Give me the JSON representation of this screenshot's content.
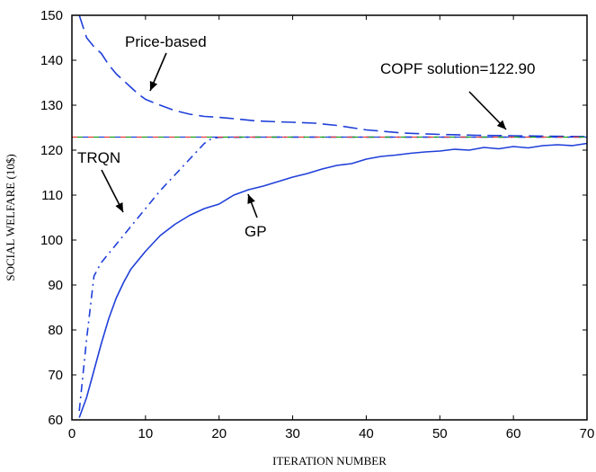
{
  "chart_data": {
    "type": "line",
    "xlabel": "ITERATION NUMBER",
    "ylabel": "SOCIAL WELFARE (10$)",
    "xlim": [
      0,
      70
    ],
    "ylim": [
      60,
      150
    ],
    "xticks": [
      0,
      10,
      20,
      30,
      40,
      50,
      60,
      70
    ],
    "yticks": [
      60,
      70,
      80,
      90,
      100,
      110,
      120,
      130,
      140,
      150
    ],
    "grid": false,
    "legend": "none",
    "annotations": [
      {
        "label": "Price-based",
        "target": "Price-based"
      },
      {
        "label": "COPF solution=122.90",
        "target": "COPF"
      },
      {
        "label": "TRQN",
        "target": "TRQN"
      },
      {
        "label": "GP",
        "target": "GP"
      }
    ],
    "series": [
      {
        "name": "Price-based",
        "style": "dashed",
        "color": "#1f3fd9",
        "x": [
          1,
          2,
          3,
          4,
          5,
          6,
          7,
          8,
          9,
          10,
          12,
          14,
          16,
          18,
          20,
          22,
          25,
          28,
          30,
          33,
          36,
          40,
          45,
          50,
          55,
          60,
          65,
          70
        ],
        "y": [
          150,
          145,
          143,
          141.5,
          139,
          137,
          135.5,
          134,
          132.5,
          131.3,
          130,
          128.8,
          128,
          127.5,
          127.3,
          127,
          126.5,
          126.3,
          126.2,
          126,
          125.5,
          124.5,
          123.8,
          123.5,
          123.3,
          123.2,
          123.1,
          123.0
        ]
      },
      {
        "name": "TRQN",
        "style": "dashdot",
        "color": "#1f3fd9",
        "x": [
          1,
          2,
          3,
          4,
          5,
          6,
          8,
          10,
          12,
          14,
          16,
          18,
          19,
          20,
          25,
          30,
          40,
          50,
          60,
          70
        ],
        "y": [
          62,
          78,
          92,
          95,
          97,
          99,
          103,
          107,
          111,
          114.5,
          118,
          121.5,
          122.6,
          122.85,
          122.9,
          122.9,
          122.9,
          122.9,
          122.9,
          122.9
        ]
      },
      {
        "name": "GP",
        "style": "solid",
        "color": "#1f3fd9",
        "x": [
          1,
          2,
          3,
          4,
          5,
          6,
          7,
          8,
          10,
          12,
          14,
          16,
          18,
          20,
          22,
          24,
          26,
          28,
          30,
          32,
          34,
          36,
          38,
          40,
          42,
          44,
          46,
          48,
          50,
          52,
          54,
          56,
          58,
          60,
          62,
          64,
          66,
          68,
          70
        ],
        "y": [
          60.5,
          65,
          71,
          77,
          82.5,
          87,
          90.5,
          93.5,
          97.5,
          101,
          103.5,
          105.5,
          107,
          108,
          110,
          111.2,
          112,
          113,
          114,
          114.8,
          115.8,
          116.6,
          117,
          118,
          118.6,
          118.9,
          119.3,
          119.6,
          119.8,
          120.2,
          120,
          120.6,
          120.3,
          120.8,
          120.5,
          121,
          121.2,
          121,
          121.5
        ]
      },
      {
        "name": "COPF",
        "style": "reference",
        "colors": [
          "#e23b3b",
          "#1aa01a",
          "#1f3fd9"
        ],
        "x": [
          0,
          70
        ],
        "y": [
          122.9,
          122.9
        ]
      }
    ]
  }
}
